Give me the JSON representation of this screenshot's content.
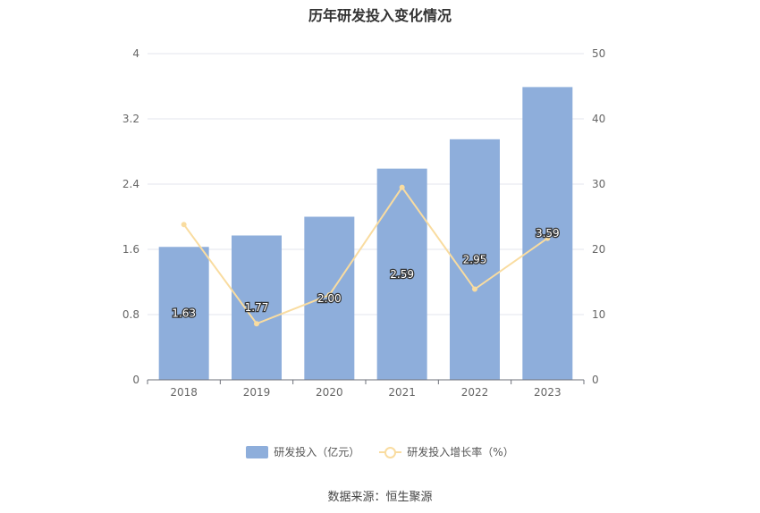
{
  "title": "历年研发投入变化情况",
  "source": "数据来源：恒生聚源",
  "chart_data": {
    "type": "bar",
    "categories": [
      "2018",
      "2019",
      "2020",
      "2021",
      "2022",
      "2023"
    ],
    "series": [
      {
        "name": "研发投入（亿元）",
        "type": "bar",
        "axis": "left",
        "values": [
          1.63,
          1.77,
          2.0,
          2.59,
          2.95,
          3.59
        ],
        "labels": [
          "1.63",
          "1.77",
          "2.00",
          "2.59",
          "2.95",
          "3.59"
        ],
        "color": "#8eaedb"
      },
      {
        "name": "研发投入增长率（%）",
        "type": "line",
        "axis": "right",
        "values": [
          23.8,
          8.6,
          13.0,
          29.5,
          13.9,
          21.7
        ],
        "color": "#f9dca0"
      }
    ],
    "left_axis": {
      "min": 0,
      "max": 4,
      "ticks": [
        "0",
        "0.8",
        "1.6",
        "2.4",
        "3.2",
        "4"
      ]
    },
    "right_axis": {
      "min": 0,
      "max": 50,
      "ticks": [
        "0",
        "10",
        "20",
        "30",
        "40",
        "50"
      ]
    },
    "grid": true,
    "legend_position": "bottom"
  }
}
